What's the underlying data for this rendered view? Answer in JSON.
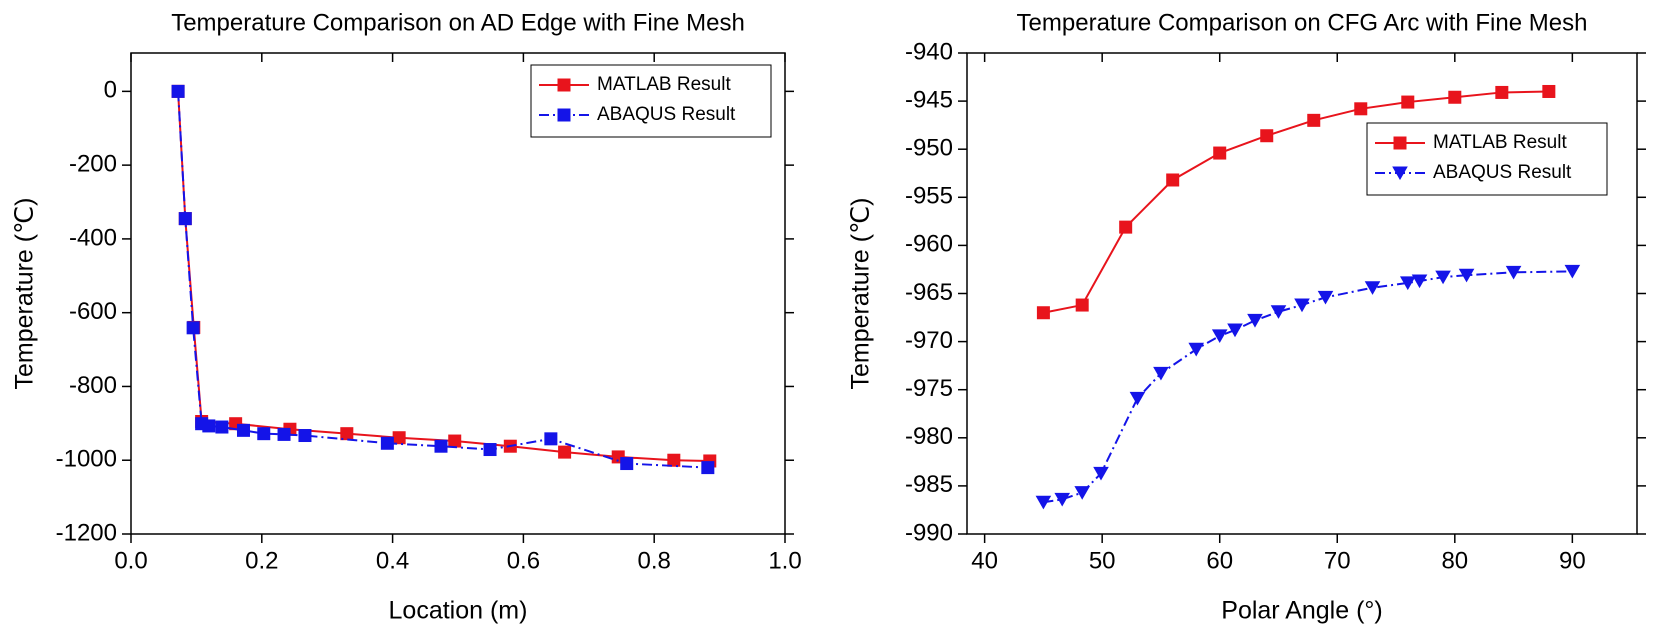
{
  "chart_data": [
    {
      "type": "line",
      "title": "Temperature Comparison on AD Edge with Fine Mesh",
      "x_label": "Location (m)",
      "y_label": "Temperature (℃)",
      "xlim": [
        0,
        1.0
      ],
      "xticks": [
        {
          "value": 0,
          "label": "0.0"
        },
        0.2,
        0.4,
        0.6,
        0.8,
        {
          "value": 1.0,
          "label": "1.0"
        }
      ],
      "ylim": [
        -1200,
        104
      ],
      "yticks": [
        -1200,
        -1000,
        -800,
        -600,
        -400,
        -200,
        0
      ],
      "legend": "upper right",
      "series": [
        {
          "name": "MATLAB Result",
          "color": "#e8141c",
          "marker": "square",
          "line": "solid",
          "x": [
            0.072,
            0.083,
            0.096,
            0.108,
            0.16,
            0.243,
            0.33,
            0.41,
            0.495,
            0.58,
            0.663,
            0.745,
            0.83,
            0.885
          ],
          "values": [
            0,
            -345,
            -640,
            -895,
            -901,
            -916,
            -928,
            -939,
            -948,
            -962,
            -978,
            -991,
            -1000,
            -1002
          ]
        },
        {
          "name": "ABAQUS Result",
          "color": "#1414e8",
          "marker": "square",
          "line": "dashdot",
          "x": [
            0.072,
            0.083,
            0.095,
            0.108,
            0.119,
            0.139,
            0.172,
            0.203,
            0.234,
            0.266,
            0.392,
            0.474,
            0.549,
            0.642,
            0.758,
            0.882
          ],
          "values": [
            0,
            -345,
            -641,
            -901,
            -907,
            -910,
            -919,
            -928,
            -930,
            -933,
            -954,
            -962,
            -971,
            -942,
            -1009,
            -1020
          ]
        }
      ]
    },
    {
      "type": "line",
      "title": "Temperature Comparison on CFG Arc with Fine Mesh",
      "x_label": "Polar Angle (°)",
      "y_label": "Temperature (℃)",
      "xlim": [
        38.5,
        95.5
      ],
      "xticks": [
        40,
        50,
        60,
        70,
        80,
        90
      ],
      "ylim": [
        -990,
        -940
      ],
      "yticks": [
        -990,
        -985,
        -980,
        -975,
        -970,
        -965,
        -960,
        -955,
        -950,
        -945,
        -940
      ],
      "legend": "center right",
      "series": [
        {
          "name": "MATLAB Result",
          "color": "#e8141c",
          "marker": "square",
          "line": "solid",
          "x": [
            45,
            48.3,
            52,
            56,
            60,
            64,
            68,
            72,
            76,
            80,
            84,
            88
          ],
          "values": [
            -967.0,
            -966.2,
            -958.1,
            -953.2,
            -950.4,
            -948.6,
            -947.0,
            -945.8,
            -945.1,
            -944.6,
            -944.1,
            -944.0
          ]
        },
        {
          "name": "ABAQUS Result",
          "color": "#1414e8",
          "marker": "triangle-down",
          "line": "dashdot",
          "x": [
            45,
            46.6,
            48.3,
            49.9,
            53,
            55,
            58,
            60,
            61.3,
            63,
            65,
            67,
            69,
            73,
            76,
            77,
            79,
            81,
            85,
            90
          ],
          "values": [
            -986.7,
            -986.4,
            -985.7,
            -983.7,
            -975.9,
            -973.3,
            -970.8,
            -969.4,
            -968.8,
            -967.8,
            -966.9,
            -966.2,
            -965.4,
            -964.4,
            -963.9,
            -963.7,
            -963.3,
            -963.1,
            -962.8,
            -962.7
          ]
        }
      ]
    }
  ]
}
